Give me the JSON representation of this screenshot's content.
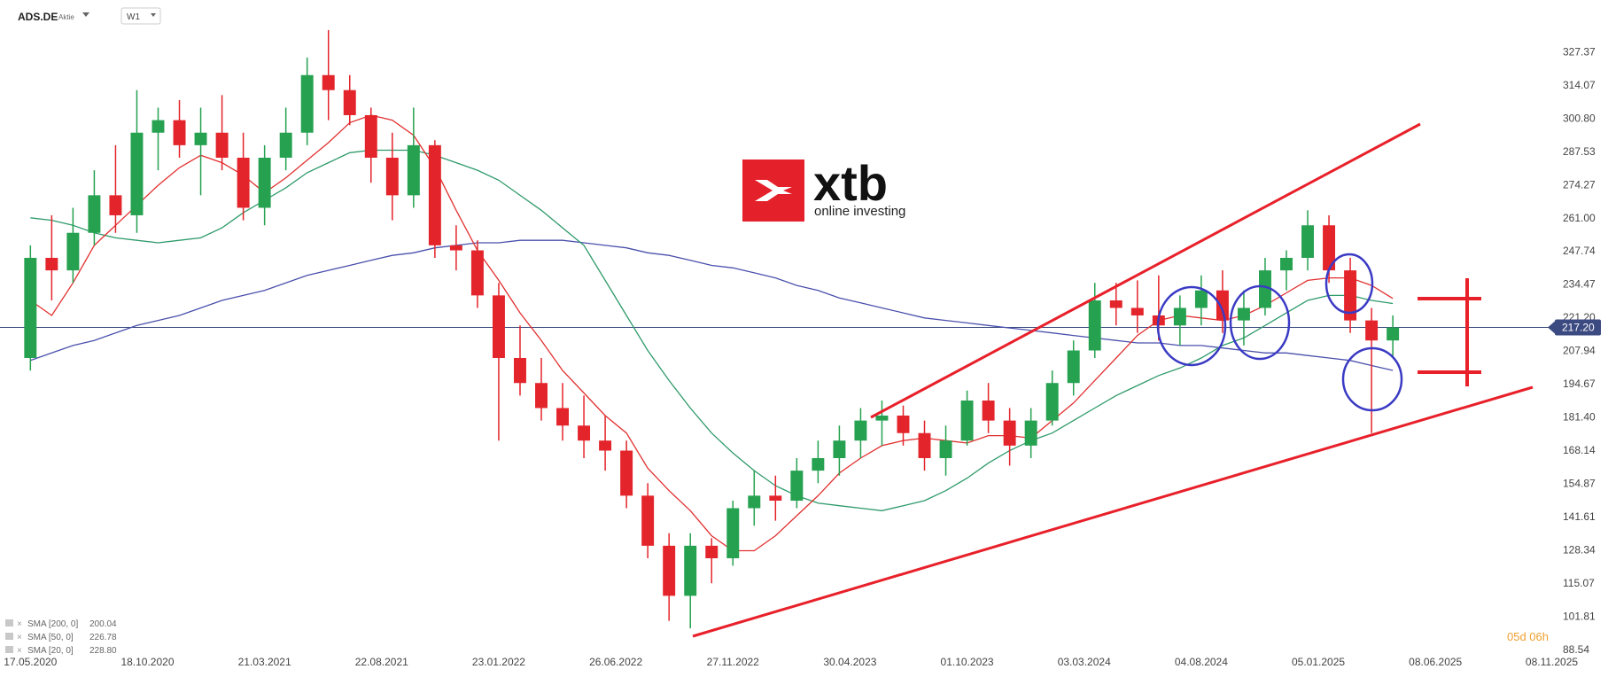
{
  "header": {
    "symbol": "ADS.DE",
    "kind": "Aktie",
    "interval": "W1"
  },
  "logo": {
    "brand": "xtb",
    "tagline": "online investing"
  },
  "timer": "05d 06h",
  "chart_data": {
    "type": "candlestick",
    "x": [
      "17.05.2020",
      "14.06.2020",
      "12.07.2020",
      "09.08.2020",
      "06.09.2020",
      "04.10.2020",
      "01.11.2020",
      "29.11.2020",
      "27.12.2020",
      "24.01.2021",
      "21.02.2021",
      "21.03.2021",
      "18.04.2021",
      "16.05.2021",
      "13.06.2021",
      "11.07.2021",
      "08.08.2021",
      "05.09.2021",
      "03.10.2021",
      "31.10.2021",
      "28.11.2021",
      "26.12.2021",
      "23.01.2022",
      "20.02.2022",
      "20.03.2022",
      "17.04.2022",
      "15.05.2022",
      "12.06.2022",
      "10.07.2022",
      "07.08.2022",
      "04.09.2022",
      "02.10.2022",
      "30.10.2022",
      "27.11.2022",
      "25.12.2022",
      "22.01.2023",
      "19.02.2023",
      "19.03.2023",
      "16.04.2023",
      "14.05.2023",
      "11.06.2023",
      "09.07.2023",
      "06.08.2023",
      "03.09.2023",
      "01.10.2023",
      "29.10.2023",
      "26.11.2023",
      "24.12.2023",
      "21.01.2024",
      "18.02.2024",
      "17.03.2024",
      "14.04.2024",
      "12.05.2024",
      "09.06.2024",
      "07.07.2024",
      "04.08.2024",
      "01.09.2024",
      "29.09.2024",
      "27.10.2024",
      "24.11.2024",
      "22.12.2024",
      "19.01.2025",
      "16.02.2025",
      "16.03.2025",
      "13.04.2025"
    ],
    "open": [
      205,
      245,
      240,
      255,
      270,
      262,
      295,
      300,
      290,
      295,
      285,
      265,
      285,
      295,
      318,
      312,
      302,
      285,
      270,
      290,
      250,
      248,
      230,
      205,
      195,
      185,
      178,
      172,
      168,
      150,
      130,
      110,
      130,
      125,
      145,
      150,
      148,
      160,
      165,
      172,
      180,
      182,
      175,
      165,
      172,
      188,
      180,
      170,
      180,
      195,
      208,
      228,
      225,
      222,
      218,
      225,
      232,
      220,
      225,
      240,
      245,
      258,
      240,
      220,
      212
    ],
    "high": [
      250,
      262,
      265,
      280,
      290,
      312,
      305,
      308,
      305,
      310,
      295,
      290,
      305,
      325,
      336,
      318,
      305,
      295,
      305,
      292,
      258,
      252,
      235,
      218,
      205,
      195,
      190,
      182,
      172,
      155,
      135,
      135,
      133,
      148,
      160,
      158,
      165,
      172,
      178,
      185,
      188,
      186,
      180,
      178,
      192,
      195,
      185,
      185,
      200,
      212,
      235,
      235,
      236,
      238,
      230,
      238,
      240,
      232,
      245,
      248,
      264,
      262,
      245,
      225,
      222
    ],
    "low": [
      200,
      228,
      235,
      250,
      255,
      255,
      280,
      285,
      270,
      280,
      260,
      258,
      280,
      290,
      300,
      298,
      275,
      260,
      265,
      245,
      240,
      225,
      172,
      190,
      180,
      172,
      165,
      160,
      145,
      125,
      100,
      97,
      115,
      122,
      138,
      140,
      145,
      155,
      158,
      165,
      170,
      170,
      160,
      158,
      170,
      175,
      162,
      165,
      178,
      190,
      205,
      218,
      215,
      212,
      210,
      218,
      215,
      210,
      222,
      232,
      240,
      235,
      215,
      175,
      205
    ],
    "close": [
      245,
      240,
      255,
      270,
      262,
      295,
      300,
      290,
      295,
      285,
      265,
      285,
      295,
      318,
      312,
      302,
      285,
      270,
      290,
      250,
      248,
      230,
      205,
      195,
      185,
      178,
      172,
      168,
      150,
      130,
      110,
      130,
      125,
      145,
      150,
      148,
      160,
      165,
      172,
      180,
      182,
      175,
      165,
      172,
      188,
      180,
      170,
      180,
      195,
      208,
      228,
      225,
      222,
      218,
      225,
      232,
      220,
      225,
      240,
      245,
      258,
      240,
      220,
      212,
      217.2
    ],
    "up_color": "#25a150",
    "down_color": "#e3242b",
    "series": [
      {
        "name": "SMA [200, 0]",
        "color": "#4a50ac",
        "last_label": "200.04",
        "values": [
          204,
          207,
          210,
          212,
          215,
          218,
          220,
          222,
          225,
          228,
          230,
          232,
          235,
          238,
          240,
          242,
          244,
          246,
          247,
          249,
          250,
          251,
          251,
          252,
          252,
          252,
          251,
          250,
          249,
          247,
          246,
          244,
          242,
          241,
          239,
          237,
          234,
          232,
          229,
          227,
          225,
          223,
          221,
          220,
          219,
          218,
          217,
          216,
          215,
          214,
          213,
          212,
          211,
          211,
          210,
          210,
          209,
          208,
          207,
          207,
          206,
          205,
          204,
          202,
          200.04
        ]
      },
      {
        "name": "SMA [50, 0]",
        "color": "#2e9a6a",
        "last_label": "226.78",
        "values": [
          261,
          260,
          258,
          255,
          253,
          252,
          251,
          252,
          253,
          257,
          263,
          268,
          273,
          279,
          283,
          287,
          288,
          288,
          288,
          286,
          283,
          280,
          276,
          270,
          264,
          257,
          250,
          236,
          222,
          208,
          196,
          185,
          175,
          167,
          160,
          154,
          150,
          147,
          146,
          145,
          144,
          146,
          148,
          152,
          157,
          163,
          168,
          172,
          175,
          180,
          185,
          190,
          194,
          198,
          201,
          205,
          210,
          213,
          218,
          223,
          228,
          230,
          230,
          228,
          226.78
        ]
      },
      {
        "name": "SMA [20, 0]",
        "color": "#e23030",
        "last_label": "228.80",
        "values": [
          228,
          222,
          235,
          250,
          258,
          266,
          274,
          281,
          286,
          283,
          278,
          271,
          277,
          284,
          291,
          299,
          302,
          300,
          294,
          281,
          264,
          248,
          236,
          223,
          212,
          200,
          191,
          182,
          175,
          161,
          152,
          144,
          134,
          128,
          128,
          134,
          142,
          150,
          159,
          165,
          170,
          172,
          173,
          172,
          171,
          174,
          174,
          173,
          180,
          187,
          196,
          205,
          214,
          220,
          222,
          221,
          220,
          222,
          226,
          231,
          236,
          237,
          237,
          234,
          228.8
        ]
      }
    ],
    "price_line": {
      "value": 217.2,
      "label": "217.20",
      "color": "#3b4a80"
    },
    "xlim": [
      "07.04.2020",
      "21.01.2026"
    ],
    "xticks": [
      "17.05.2020",
      "18.10.2020",
      "21.03.2021",
      "22.08.2021",
      "23.01.2022",
      "26.06.2022",
      "27.11.2022",
      "30.04.2023",
      "01.10.2023",
      "03.03.2024",
      "04.08.2024",
      "05.01.2025",
      "08.06.2025",
      "08.11.2025"
    ],
    "ylim": [
      85,
      348
    ],
    "yticks": [
      327.37,
      314.07,
      {
        "value": 300.8,
        "label": "300.80"
      },
      287.53,
      274.27,
      {
        "value": 261,
        "label": "261.00"
      },
      247.74,
      234.47,
      {
        "value": 221.2,
        "label": "221.20"
      },
      207.94,
      194.67,
      {
        "value": 181.4,
        "label": "181.40"
      },
      168.14,
      154.87,
      141.61,
      128.34,
      115.07,
      101.81,
      88.54
    ]
  }
}
